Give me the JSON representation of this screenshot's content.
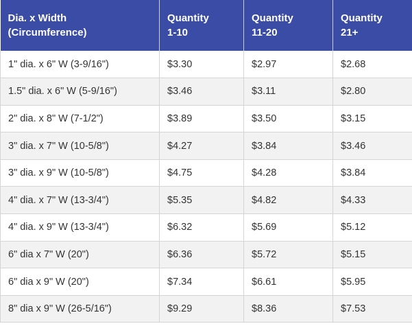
{
  "header": {
    "col0_line1": "Dia. x Width",
    "col0_line2": "(Circumference)",
    "col1_line1": "Quantity",
    "col1_line2": "1-10",
    "col2_line1": "Quantity",
    "col2_line2": "11-20",
    "col3_line1": "Quantity",
    "col3_line2": "21+"
  },
  "rows": [
    [
      "1\" dia. x 6\" W (3-9/16\")",
      "$3.30",
      "$2.97",
      "$2.68"
    ],
    [
      "1.5\" dia. x 6\" W (5-9/16\")",
      "$3.46",
      "$3.11",
      "$2.80"
    ],
    [
      "2\" dia. x 8\" W (7-1/2\")",
      "$3.89",
      "$3.50",
      "$3.15"
    ],
    [
      "3\" dia. x 7\" W (10-5/8\")",
      "$4.27",
      "$3.84",
      "$3.46"
    ],
    [
      "3\" dia. x 9\" W (10-5/8\")",
      "$4.75",
      "$4.28",
      "$3.84"
    ],
    [
      "4\" dia. x 7\" W (13-3/4\")",
      "$5.35",
      "$4.82",
      "$4.33"
    ],
    [
      "4\" dia. x 9\" W (13-3/4\")",
      "$6.32",
      "$5.69",
      "$5.12"
    ],
    [
      "6\" dia x 7\" W (20\")",
      "$6.36",
      "$5.72",
      "$5.15"
    ],
    [
      "6\" dia x 9\" W (20\")",
      "$7.34",
      "$6.61",
      "$5.95"
    ],
    [
      "8\" dia x 9\" W (26-5/16\")",
      "$9.29",
      "$8.36",
      "$7.53"
    ]
  ]
}
